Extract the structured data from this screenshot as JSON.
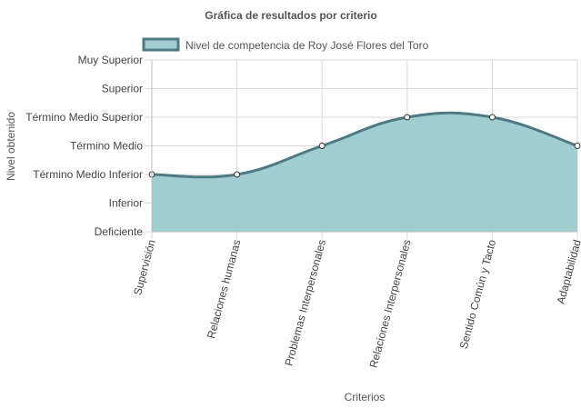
{
  "chart_data": {
    "type": "area",
    "title": "Gráfica de resultados por criterio",
    "xlabel": "Criterios",
    "ylabel": "Nivel obtenido",
    "categories": [
      "Supervisión",
      "Relaciones humanas",
      "Problemas Interpersonales",
      "Relaciones Interpersonales",
      "Sentido Común y Tacto",
      "Adaptabilidad"
    ],
    "y_levels": [
      "Deficiente",
      "Inferior",
      "Término Medio Inferior",
      "Término Medio",
      "Término Medio Superior",
      "Superior",
      "Muy Superior"
    ],
    "ylim": [
      0,
      6
    ],
    "series": [
      {
        "name": "Nivel de competencia de Roy José Flores del Toro",
        "values": [
          2,
          2,
          3,
          4,
          4,
          3
        ]
      }
    ],
    "grid": true,
    "legend": "top",
    "colors": {
      "fill": "#a0cdd0",
      "line": "#4f7a84",
      "grid": "#d9d9d9",
      "point_fill": "#ffffff"
    }
  }
}
